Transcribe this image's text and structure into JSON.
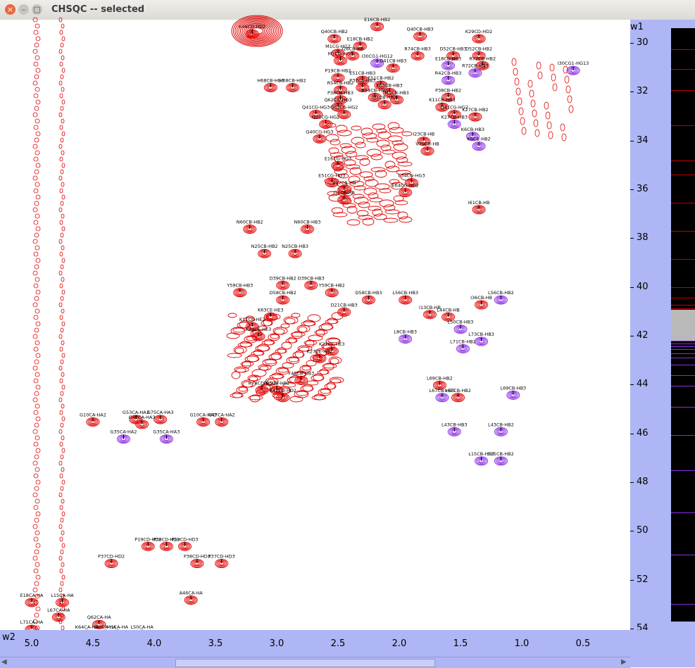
{
  "window": {
    "title": "CHSQC -- selected"
  },
  "axes": {
    "w1_label": "w1",
    "w2_label": "w2",
    "y_ticks": [
      "30",
      "32",
      "34",
      "36",
      "38",
      "40",
      "42",
      "44",
      "46",
      "48",
      "50",
      "52",
      "54"
    ],
    "x_ticks": [
      "5.0",
      "4.5",
      "4.0",
      "3.5",
      "3.0",
      "2.5",
      "2.0",
      "1.5",
      "1.0",
      "0.5"
    ]
  },
  "colors": {
    "positive_contour": "#e00000",
    "negative_contour": "#8a2be2",
    "axis_bg": "#aeb6f5"
  },
  "peaks": [
    {
      "label": "K46CD-HD2",
      "x": 3.2,
      "y": 29.4
    },
    {
      "label": "Q40CB-HB2",
      "x": 2.53,
      "y": 29.6
    },
    {
      "label": "E16CB-HB2",
      "x": 2.18,
      "y": 29.1
    },
    {
      "label": "Q40CB-HB3",
      "x": 1.83,
      "y": 29.5
    },
    {
      "label": "K29CD-HD2",
      "x": 1.35,
      "y": 29.6
    },
    {
      "label": "E18CB-HB2",
      "x": 2.32,
      "y": 29.9
    },
    {
      "label": "M1CG-HG2",
      "x": 2.5,
      "y": 30.2
    },
    {
      "label": "M1CG-HG3",
      "x": 2.48,
      "y": 30.5
    },
    {
      "label": "I26CB-HB",
      "x": 2.38,
      "y": 30.3
    },
    {
      "label": "I30CG1-HG12",
      "x": 2.18,
      "y": 30.6
    },
    {
      "label": "R74CB-HB3",
      "x": 1.85,
      "y": 30.3
    },
    {
      "label": "D52CB-HB3",
      "x": 1.56,
      "y": 30.3
    },
    {
      "label": "D52CB-HB2",
      "x": 1.35,
      "y": 30.3
    },
    {
      "label": "I30CG1-HG13",
      "x": 0.58,
      "y": 30.9
    },
    {
      "label": "H68CB-HB3",
      "x": 3.05,
      "y": 31.6
    },
    {
      "label": "H68CB-HB2",
      "x": 2.87,
      "y": 31.6
    },
    {
      "label": "Q41CB-HB3",
      "x": 2.05,
      "y": 30.8
    },
    {
      "label": "R72CB-HB2",
      "x": 1.32,
      "y": 30.7
    },
    {
      "label": "E18CB-HB3",
      "x": 1.6,
      "y": 30.7
    },
    {
      "label": "R72CB-HB3",
      "x": 1.38,
      "y": 31.0
    },
    {
      "label": "R42CB-HB3",
      "x": 1.6,
      "y": 31.3
    },
    {
      "label": "P19CB-HB2",
      "x": 2.5,
      "y": 31.2
    },
    {
      "label": "E51CB-HB3",
      "x": 2.3,
      "y": 31.3
    },
    {
      "label": "E51CB-HB2",
      "x": 2.15,
      "y": 31.5
    },
    {
      "label": "P37CB-HB3",
      "x": 2.3,
      "y": 31.6
    },
    {
      "label": "R54CB-HB2",
      "x": 2.48,
      "y": 31.7
    },
    {
      "label": "K63CB-HB3",
      "x": 2.08,
      "y": 31.8
    },
    {
      "label": "R54CB-HB3",
      "x": 2.2,
      "y": 32.0
    },
    {
      "label": "P38CB-HB3",
      "x": 2.48,
      "y": 32.1
    },
    {
      "label": "M1CB-HB3",
      "x": 2.02,
      "y": 32.1
    },
    {
      "label": "P38CB-HB2",
      "x": 1.6,
      "y": 32.0
    },
    {
      "label": "M1CB-HB2",
      "x": 2.12,
      "y": 32.3
    },
    {
      "label": "K11CB-HB3",
      "x": 1.65,
      "y": 32.4
    },
    {
      "label": "Q62CG-HG3",
      "x": 2.5,
      "y": 32.4
    },
    {
      "label": "Q41CG-HG3",
      "x": 2.68,
      "y": 32.7
    },
    {
      "label": "Q62CG-HG2",
      "x": 2.45,
      "y": 32.7
    },
    {
      "label": "Q41CG-HG2",
      "x": 1.55,
      "y": 32.7
    },
    {
      "label": "K27CB-HB2",
      "x": 1.38,
      "y": 32.8
    },
    {
      "label": "Q31CG-HG2",
      "x": 2.6,
      "y": 33.1
    },
    {
      "label": "K27CB-HB3",
      "x": 1.55,
      "y": 33.1
    },
    {
      "label": "K6CB-HB3",
      "x": 1.4,
      "y": 33.6
    },
    {
      "label": "Q40CG-HG3",
      "x": 2.65,
      "y": 33.7
    },
    {
      "label": "I23CB-HB",
      "x": 1.8,
      "y": 33.8
    },
    {
      "label": "K6CB-HB2",
      "x": 1.35,
      "y": 34.0
    },
    {
      "label": "V70CB-HB",
      "x": 1.77,
      "y": 34.2
    },
    {
      "label": "E16CG-HG3",
      "x": 2.5,
      "y": 34.8
    },
    {
      "label": "E51CG-HG3",
      "x": 2.55,
      "y": 35.5
    },
    {
      "label": "V17CB-HB",
      "x": 2.45,
      "y": 35.8
    },
    {
      "label": "E34CG-HG3",
      "x": 1.9,
      "y": 35.5
    },
    {
      "label": "E64CG-HG2",
      "x": 1.95,
      "y": 35.9
    },
    {
      "label": "I30CB-HB",
      "x": 2.45,
      "y": 36.2
    },
    {
      "label": "I61CB-HB",
      "x": 1.35,
      "y": 36.6
    },
    {
      "label": "N60CB-HB2",
      "x": 3.22,
      "y": 37.4
    },
    {
      "label": "N60CB-HB3",
      "x": 2.75,
      "y": 37.4
    },
    {
      "label": "N25CB-HB2",
      "x": 3.1,
      "y": 38.4
    },
    {
      "label": "N25CB-HB3",
      "x": 2.85,
      "y": 38.4
    },
    {
      "label": "D39CB-HB2",
      "x": 2.95,
      "y": 39.7
    },
    {
      "label": "D39CB-HB3",
      "x": 2.72,
      "y": 39.7
    },
    {
      "label": "Y59CB-HB3",
      "x": 3.3,
      "y": 40.0
    },
    {
      "label": "Y59CB-HB2",
      "x": 2.55,
      "y": 40.0
    },
    {
      "label": "D58CB-HB2",
      "x": 2.95,
      "y": 40.3
    },
    {
      "label": "D58CB-HB3",
      "x": 2.25,
      "y": 40.3
    },
    {
      "label": "L56CB-HB3",
      "x": 1.95,
      "y": 40.3
    },
    {
      "label": "L56CB-HB2",
      "x": 1.17,
      "y": 40.3
    },
    {
      "label": "I36CB-HB",
      "x": 1.33,
      "y": 40.5
    },
    {
      "label": "I13CB-HB",
      "x": 1.75,
      "y": 40.9
    },
    {
      "label": "L44CB-HB",
      "x": 1.6,
      "y": 41.0
    },
    {
      "label": "D21CB-HB3",
      "x": 2.45,
      "y": 40.8
    },
    {
      "label": "L50CB-HB3",
      "x": 1.5,
      "y": 41.5
    },
    {
      "label": "L8CB-HB3",
      "x": 1.95,
      "y": 41.9
    },
    {
      "label": "L73CB-HB3",
      "x": 1.33,
      "y": 42.0
    },
    {
      "label": "K63CE-HE3",
      "x": 3.05,
      "y": 41.0
    },
    {
      "label": "K11CE-HE2",
      "x": 3.2,
      "y": 41.4
    },
    {
      "label": "K29CE-HE3",
      "x": 3.15,
      "y": 41.8
    },
    {
      "label": "K27CE-HE3",
      "x": 2.55,
      "y": 42.4
    },
    {
      "label": "K27CE-HE2",
      "x": 2.65,
      "y": 42.7
    },
    {
      "label": "L71CB-HB2",
      "x": 1.48,
      "y": 42.3
    },
    {
      "label": "L69CB-HB2",
      "x": 1.67,
      "y": 43.8
    },
    {
      "label": "L69CB-HB3",
      "x": 1.07,
      "y": 44.2
    },
    {
      "label": "L67CB-HB3",
      "x": 1.65,
      "y": 44.3
    },
    {
      "label": "L67CB-HB2",
      "x": 1.52,
      "y": 44.3
    },
    {
      "label": "F45CB-HB3",
      "x": 2.8,
      "y": 43.6
    },
    {
      "label": "F45CB-HB2",
      "x": 3.0,
      "y": 44.0
    },
    {
      "label": "R74CD-HD2",
      "x": 3.12,
      "y": 44.0
    },
    {
      "label": "R42CD-HD2",
      "x": 2.95,
      "y": 44.3
    },
    {
      "label": "G53CA-HA3",
      "x": 4.15,
      "y": 45.2
    },
    {
      "label": "G75CA-HA3",
      "x": 3.95,
      "y": 45.2
    },
    {
      "label": "G10CA-HA2",
      "x": 4.5,
      "y": 45.3
    },
    {
      "label": "G47CA-HA3",
      "x": 4.1,
      "y": 45.4
    },
    {
      "label": "G10CA-HA3",
      "x": 3.6,
      "y": 45.3
    },
    {
      "label": "G47CA-HA2",
      "x": 3.45,
      "y": 45.3
    },
    {
      "label": "G35CA-HA2",
      "x": 4.25,
      "y": 46.0
    },
    {
      "label": "G35CA-HA3",
      "x": 3.9,
      "y": 46.0
    },
    {
      "label": "L43CB-HB3",
      "x": 1.55,
      "y": 45.7
    },
    {
      "label": "L43CB-HB2",
      "x": 1.17,
      "y": 45.7
    },
    {
      "label": "L15CB-HB3",
      "x": 1.33,
      "y": 46.9
    },
    {
      "label": "L15CB-HB2",
      "x": 1.17,
      "y": 46.9
    },
    {
      "label": "P19CD-HD2",
      "x": 4.05,
      "y": 50.4
    },
    {
      "label": "P19CD-HD3",
      "x": 3.75,
      "y": 50.4
    },
    {
      "label": "P37CD-HD2",
      "x": 4.35,
      "y": 51.1
    },
    {
      "label": "P38CD-HD2",
      "x": 3.9,
      "y": 50.4
    },
    {
      "label": "P38CD-HD3",
      "x": 3.65,
      "y": 51.1
    },
    {
      "label": "P37CD-HD3",
      "x": 3.45,
      "y": 51.1
    },
    {
      "label": "A46CA-HA",
      "x": 3.7,
      "y": 52.6
    },
    {
      "label": "E18CA-HA",
      "x": 5.0,
      "y": 52.7
    },
    {
      "label": "L15CA-HA",
      "x": 4.75,
      "y": 52.7
    },
    {
      "label": "Q62CA-HA",
      "x": 4.45,
      "y": 53.6
    },
    {
      "label": "L67CA-HA",
      "x": 4.78,
      "y": 53.3
    },
    {
      "label": "L71CA-HA",
      "x": 5.0,
      "y": 53.8
    },
    {
      "label": "I60CA-HA",
      "x": 4.4,
      "y": 54.0
    },
    {
      "label": "K64CA-HA",
      "x": 4.55,
      "y": 54.0
    },
    {
      "label": "M1CA-HA",
      "x": 4.3,
      "y": 54.0
    },
    {
      "label": "L50CA-HA",
      "x": 4.1,
      "y": 54.0
    }
  ]
}
